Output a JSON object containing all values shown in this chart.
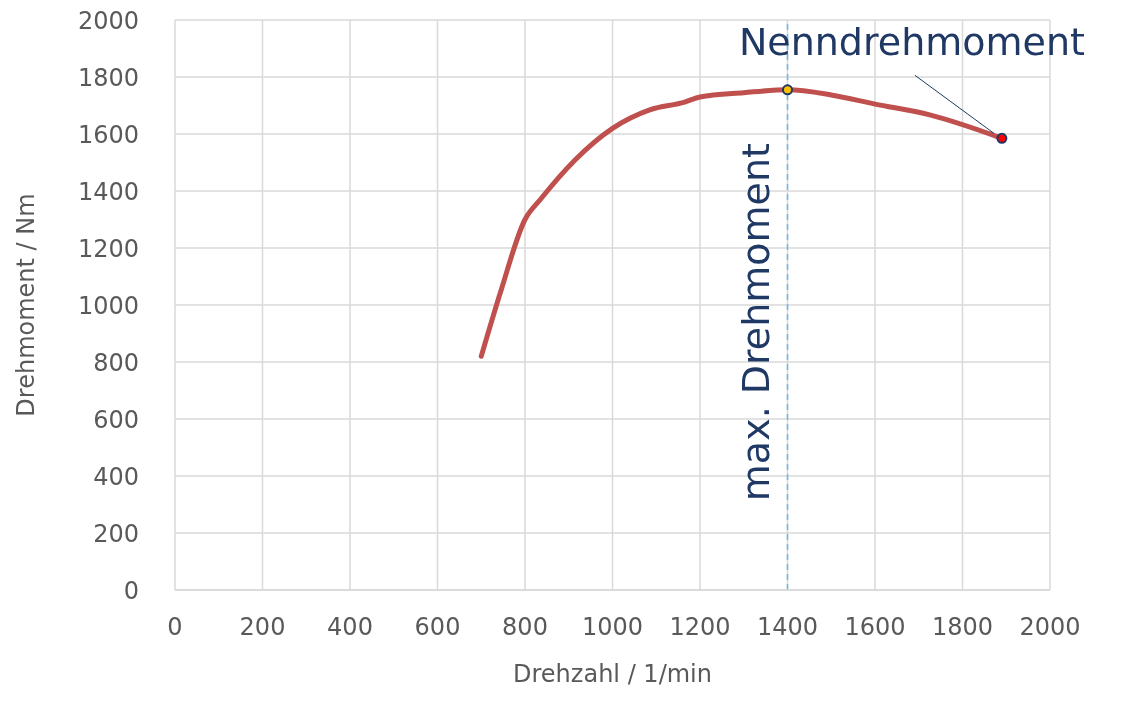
{
  "chart_data": {
    "type": "line",
    "xlabel": "Drehzahl / 1/min",
    "ylabel": "Drehmoment / Nm",
    "xlim": [
      0,
      2000
    ],
    "xticks": [
      0,
      200,
      400,
      600,
      800,
      1000,
      1200,
      1400,
      1600,
      1800,
      2000
    ],
    "ylim": [
      0,
      2000
    ],
    "yticks": [
      0,
      200,
      400,
      600,
      800,
      1000,
      1200,
      1400,
      1600,
      1800,
      2000
    ],
    "grid": true,
    "line_style": "solid",
    "series": [
      {
        "color": "#c0504d",
        "marker": "none",
        "x": [
          700,
          745,
          800,
          835,
          915,
          1000,
          1085,
          1165,
          1200,
          1300,
          1400,
          1500,
          1600,
          1725,
          1890
        ],
        "values": [
          820,
          1050,
          1300,
          1370,
          1510,
          1620,
          1685,
          1712,
          1730,
          1745,
          1755,
          1737,
          1705,
          1667,
          1585
        ]
      },
      {
        "type": "scatter",
        "color": "#ffc000",
        "marker": "circle",
        "x": [
          1400
        ],
        "values": [
          1755
        ]
      },
      {
        "type": "scatter",
        "color": "#ff0000",
        "marker": "circle",
        "x": [
          1890
        ],
        "values": [
          1585
        ]
      }
    ],
    "ref_lines": [
      {
        "axis": "x",
        "value": 1400,
        "label": "max. Drehmoment",
        "color": "#5bc0eb",
        "line_style": "dashed"
      }
    ],
    "annotations": [
      {
        "text": "Nenndrehmoment",
        "x": 1890,
        "y": 1585
      }
    ]
  }
}
